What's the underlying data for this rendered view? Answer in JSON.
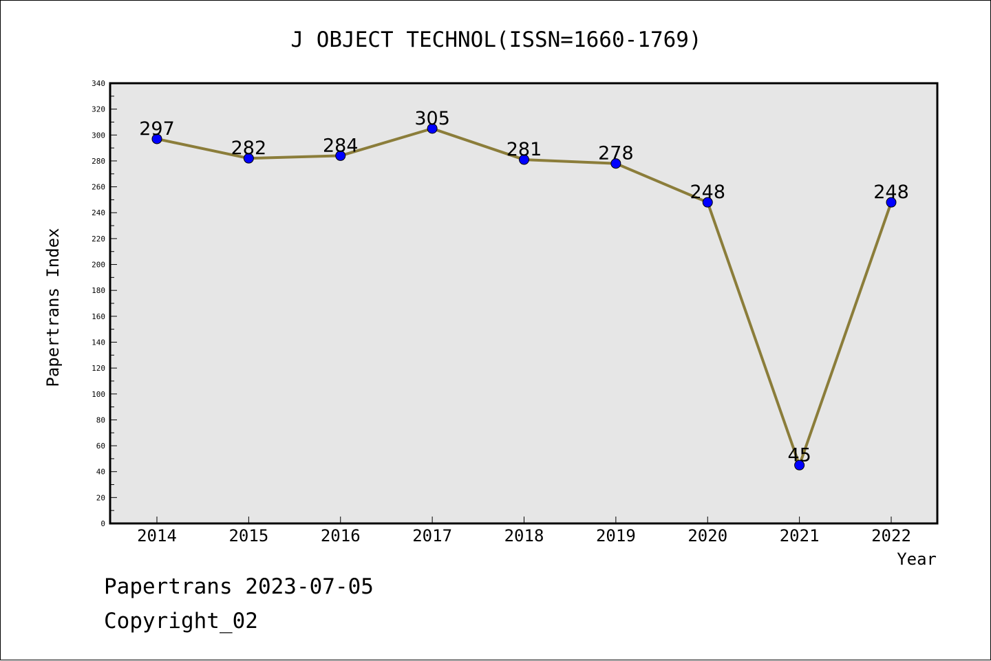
{
  "chart_data": {
    "type": "line",
    "title": "J OBJECT TECHNOL(ISSN=1660-1769)",
    "xlabel": "Year",
    "ylabel": "Papertrans Index",
    "categories": [
      "2014",
      "2015",
      "2016",
      "2017",
      "2018",
      "2019",
      "2020",
      "2021",
      "2022"
    ],
    "series": [
      {
        "values": [
          297,
          282,
          284,
          305,
          281,
          278,
          248,
          45,
          248
        ]
      }
    ],
    "ylim": [
      0,
      340
    ],
    "yticks": [
      0,
      20,
      40,
      60,
      80,
      100,
      120,
      140,
      160,
      180,
      200,
      220,
      240,
      260,
      280,
      300,
      320,
      340
    ],
    "grid": false,
    "data_labels": true,
    "colors": {
      "line": "#8B7D3A",
      "marker": "#0000FF",
      "plot_background": "#E6E6E6"
    }
  },
  "footer": {
    "line1": "Papertrans 2023-07-05",
    "line2": "Copyright_02"
  }
}
